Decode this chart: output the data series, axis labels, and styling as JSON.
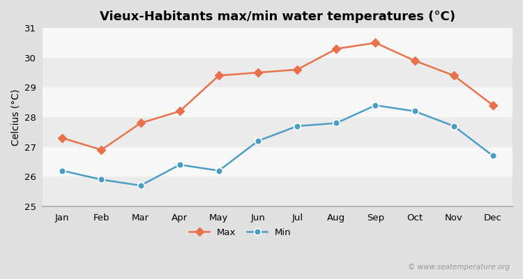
{
  "title": "Vieux-Habitants max/min water temperatures (°C)",
  "ylabel": "Celcius (°C)",
  "months": [
    "Jan",
    "Feb",
    "Mar",
    "Apr",
    "May",
    "Jun",
    "Jul",
    "Aug",
    "Sep",
    "Oct",
    "Nov",
    "Dec"
  ],
  "max_temps": [
    27.3,
    26.9,
    27.8,
    28.2,
    29.4,
    29.5,
    29.6,
    30.3,
    30.5,
    29.9,
    29.4,
    28.4
  ],
  "min_temps": [
    26.2,
    25.9,
    25.7,
    26.4,
    26.2,
    27.2,
    27.7,
    27.8,
    28.4,
    28.2,
    27.7,
    26.7
  ],
  "max_color": "#e8714a",
  "min_color": "#4a9ec4",
  "ylim": [
    25,
    31
  ],
  "yticks": [
    25,
    26,
    27,
    28,
    29,
    30,
    31
  ],
  "figure_bg": "#e0e0e0",
  "band_colors": [
    "#ebebeb",
    "#f7f7f7"
  ],
  "legend_max_label": "Max",
  "legend_min_label": "Min",
  "watermark": "© www.seatemperature.org",
  "title_fontsize": 13,
  "axis_label_fontsize": 10,
  "tick_fontsize": 9.5
}
